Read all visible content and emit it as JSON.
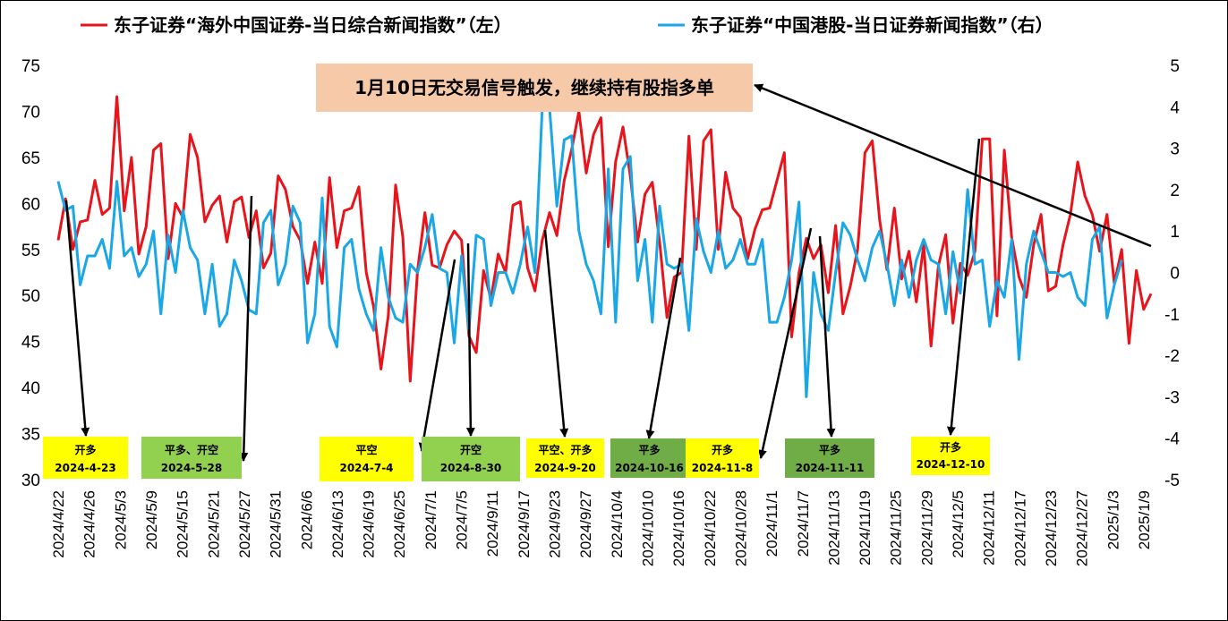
{
  "chart_data": {
    "type": "line",
    "legend": {
      "placement": "top",
      "entries": [
        {
          "label": "东子证券“海外中国证券-当日综合新闻指数”（左）",
          "color": "#e8141b"
        },
        {
          "label": "东子证券“中国港股-当日证券新闻指数”（右）",
          "color": "#1aa7e6"
        }
      ]
    },
    "y_left": {
      "min": 30,
      "max": 75,
      "step": 5,
      "ticks": [
        "30",
        "35",
        "40",
        "45",
        "50",
        "55",
        "60",
        "65",
        "70",
        "75"
      ]
    },
    "y_right": {
      "min": -5,
      "max": 5,
      "step": 1,
      "ticks": [
        "-5",
        "-4",
        "-3",
        "-2",
        "-1",
        "0",
        "1",
        "2",
        "3",
        "4",
        "5"
      ]
    },
    "x_tick_labels": [
      "2024/4/22",
      "2024/4/26",
      "2024/5/3",
      "2024/5/9",
      "2024/5/15",
      "2024/5/21",
      "2024/5/27",
      "2024/5/31",
      "2024/6/6",
      "2024/6/13",
      "2024/6/19",
      "2024/6/25",
      "2024/7/1",
      "2024/7/5",
      "2024/9/11",
      "2024/9/17",
      "2024/9/23",
      "2024/9/27",
      "2024/10/4",
      "2024/10/10",
      "2024/10/16",
      "2024/10/22",
      "2024/10/28",
      "2024/11/1",
      "2024/11/7",
      "2024/11/13",
      "2024/11/19",
      "2024/11/25",
      "2024/11/29",
      "2024/12/5",
      "2024/12/11",
      "2024/12/17",
      "2024/12/23",
      "2024/12/27",
      "2025/1/3",
      "2025/1/9"
    ],
    "series": [
      {
        "name": "东子证券“海外中国证券-当日综合新闻指数”（左）",
        "axis": "left",
        "color": "#e8141b",
        "values": [
          56,
          60.5,
          55,
          58,
          58.2,
          62.5,
          58.8,
          59.5,
          71.6,
          59.2,
          65,
          54.5,
          57.5,
          65.8,
          66.5,
          54,
          60,
          58.5,
          67.5,
          65,
          58,
          59.8,
          60.8,
          55.8,
          60.2,
          60.7,
          56.3,
          59.2,
          53,
          54.6,
          63,
          61.5,
          57.5,
          56,
          51.3,
          55.8,
          51.3,
          62.8,
          55.2,
          59.2,
          59.5,
          61.8,
          52.5,
          48.8,
          42,
          47.8,
          62,
          56.3,
          40.7,
          52.7,
          59,
          53.3,
          53,
          55.5,
          57,
          56,
          45.6,
          43.8,
          52.7,
          49.6,
          54.5,
          52.5,
          59.8,
          60.2,
          53,
          50.5,
          56,
          59,
          56.5,
          62.5,
          65.8,
          70,
          63.3,
          67.5,
          69.3,
          55.3,
          64.5,
          68.3,
          63,
          55.8,
          61,
          62.3,
          55.8,
          47.6,
          52,
          52.5,
          67.3,
          55,
          66.8,
          68,
          55,
          63.4,
          59.5,
          58.5,
          54,
          57.2,
          59.3,
          59.5,
          62.5,
          65.5,
          45.5,
          52.5,
          56.2,
          54,
          55.5,
          50.3,
          57.6,
          48,
          51,
          55,
          65.5,
          66.8,
          58.2,
          52.8,
          59.5,
          51.8,
          54.8,
          49.3,
          55.5,
          44.5,
          53.2,
          56.6,
          47,
          53.5,
          52.2,
          54.8,
          67,
          67,
          47.8,
          65.8,
          56.3,
          52,
          49.8,
          55.5,
          58.8,
          50.5,
          51,
          55.5,
          58.8,
          64.5,
          60.8,
          58.8,
          54.8,
          58.8,
          51.3,
          55,
          44.8,
          52.7,
          48.5,
          50.2
        ]
      },
      {
        "name": "东子证券“中国港股-当日证券新闻指数”（右）",
        "axis": "right",
        "color": "#1aa7e6",
        "values": [
          2.2,
          1.5,
          1.6,
          -0.3,
          0.4,
          0.4,
          0.8,
          0.1,
          2.2,
          0.4,
          0.6,
          -0.1,
          0.2,
          1,
          -1,
          0.9,
          0,
          1.5,
          0.6,
          0.3,
          -1,
          0.2,
          -1.3,
          -1,
          0.3,
          -0.2,
          -0.9,
          -1,
          1.2,
          1.5,
          -0.3,
          0.2,
          1.6,
          1.2,
          -1.7,
          -1,
          1.8,
          -1.3,
          -1.8,
          0.6,
          0.8,
          -0.4,
          -1,
          -1.4,
          0.6,
          -0.6,
          -1.1,
          -1.2,
          0.2,
          0,
          0.6,
          1.4,
          0.1,
          0,
          -1.7,
          0.4,
          -1.4,
          0.9,
          0.8,
          -0.8,
          0,
          0,
          -0.5,
          0.2,
          1.1,
          0,
          4,
          4,
          1.6,
          3.2,
          3.3,
          1,
          0.2,
          -0.2,
          -1,
          2.5,
          -1.2,
          2.5,
          2.8,
          -0.2,
          0.8,
          -1.2,
          1.6,
          0.2,
          0.1,
          0.2,
          -1.4,
          1.3,
          0.5,
          0,
          1,
          0.1,
          0.3,
          0.8,
          0.2,
          0.2,
          0.8,
          -1.2,
          -1.2,
          -0.6,
          0.3,
          1.7,
          -3,
          0,
          -1,
          -1.4,
          0,
          1.2,
          0.9,
          0.3,
          -0.2,
          0.6,
          1,
          0.2,
          -0.8,
          0.3,
          -0.6,
          0.3,
          0.8,
          0.3,
          0.2,
          -1,
          0.5,
          -0.5,
          2,
          0.2,
          0.3,
          -1.3,
          -0.2,
          -0.6,
          0.8,
          -2.1,
          0.2,
          1,
          0.5,
          0,
          0,
          -0.1,
          0,
          -0.6,
          -0.8,
          0.8,
          1.1,
          -1.1,
          -0.3,
          0.3
        ]
      }
    ],
    "callout": {
      "text": "1月10日无交易信号触发，继续持有股指多单",
      "bg": "#f6c9a8"
    },
    "annotations": [
      {
        "line1": "开多",
        "line2": "2024-4-23",
        "bg": "#ffff00"
      },
      {
        "line1": "平多、开空",
        "line2": "2024-5-28",
        "bg": "#92d050"
      },
      {
        "line1": "平空",
        "line2": "2024-7-4",
        "bg": "#ffff00"
      },
      {
        "line1": "开空",
        "line2": "2024-8-30",
        "bg": "#92d050"
      },
      {
        "line1": "平空、开多",
        "line2": "2024-9-20",
        "bg": "#ffff00"
      },
      {
        "line1": "平多",
        "line2": "2024-10-16",
        "bg": "#70ad47"
      },
      {
        "line1": "开多",
        "line2": "2024-11-8",
        "bg": "#ffff00"
      },
      {
        "line1": "平多",
        "line2": "2024-11-11",
        "bg": "#70ad47"
      },
      {
        "line1": "开多",
        "line2": "2024-12-10",
        "bg": "#ffff00"
      }
    ]
  }
}
